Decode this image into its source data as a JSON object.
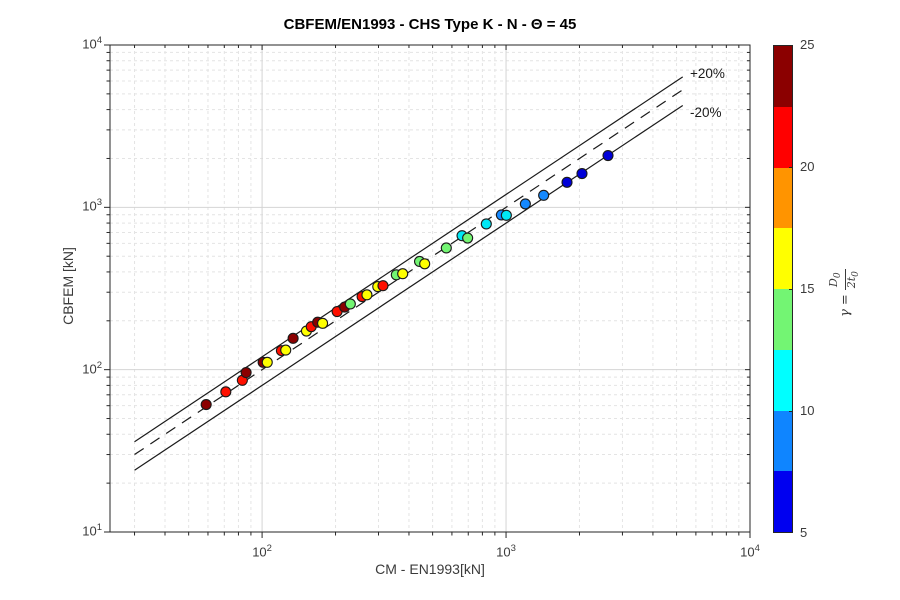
{
  "title": "CBFEM/EN1993 - CHS Type K - N - Θ = 45",
  "axes": {
    "xlabel": "CM - EN1993[kN]",
    "ylabel": "CBFEM [kN]",
    "xlim": [
      23.8,
      10000
    ],
    "ylim": [
      10,
      10000
    ],
    "x_major_ticks": [
      {
        "v": 100,
        "base": "10",
        "exp": "2"
      },
      {
        "v": 1000,
        "base": "10",
        "exp": "3"
      },
      {
        "v": 10000,
        "base": "10",
        "exp": "4"
      }
    ],
    "y_major_ticks": [
      {
        "v": 10,
        "base": "10",
        "exp": "1"
      },
      {
        "v": 100,
        "base": "10",
        "exp": "2"
      },
      {
        "v": 1000,
        "base": "10",
        "exp": "3"
      },
      {
        "v": 10000,
        "base": "10",
        "exp": "4"
      }
    ]
  },
  "reference_lines": [
    {
      "name": "plus20",
      "label": "+20%",
      "factor": 1.2,
      "style": "solid",
      "x_start": 30,
      "x_end": 5300
    },
    {
      "name": "identity",
      "label": "",
      "factor": 1.0,
      "style": "dashed",
      "x_start": 30,
      "x_end": 5300
    },
    {
      "name": "minus20",
      "label": "-20%",
      "factor": 0.8,
      "style": "solid",
      "x_start": 30,
      "x_end": 5300
    }
  ],
  "colorbar": {
    "tick_labels": [
      "5",
      "10",
      "15",
      "20",
      "25"
    ],
    "tick_values": [
      5,
      10,
      15,
      20,
      25
    ],
    "range": [
      5,
      25
    ],
    "segments_top_to_bottom": [
      "#8B0000",
      "#FF0000",
      "#FF9400",
      "#FFFF00",
      "#73F573",
      "#00FFFF",
      "#0F85FF",
      "#0000F0"
    ],
    "label": {
      "symbol": "γ",
      "equals": "=",
      "numerator_main": "D",
      "numerator_sub": "0",
      "denominator_main": "2t",
      "denominator_sub": "0"
    }
  },
  "chart_data": {
    "type": "scatter",
    "title": "CBFEM/EN1993 - CHS Type K - N - Θ = 45",
    "xlabel": "CM - EN1993[kN]",
    "ylabel": "CBFEM [kN]",
    "x_scale": "log",
    "y_scale": "log",
    "xlim": [
      23.8,
      10000
    ],
    "ylim": [
      10,
      10000
    ],
    "grid": true,
    "legend_position": "colorbar-right",
    "colorbar_label": "gamma = D0/(2t0)",
    "color_groups": {
      "darkred": {
        "gamma_bin": "22.5-25",
        "gamma": 25,
        "hex": "#8B0000"
      },
      "red": {
        "gamma_bin": "20-22.5",
        "gamma": 21,
        "hex": "#FF1000"
      },
      "yellow": {
        "gamma_bin": "15-17.5",
        "gamma": 16,
        "hex": "#FFFF00"
      },
      "green": {
        "gamma_bin": "12.5-15",
        "gamma": 13,
        "hex": "#73F573"
      },
      "cyan": {
        "gamma_bin": "10-12.5",
        "gamma": 11,
        "hex": "#00E8F5"
      },
      "blue": {
        "gamma_bin": "7.5-10",
        "gamma": 9,
        "hex": "#1589FF"
      },
      "darkblue": {
        "gamma_bin": "5-7.5",
        "gamma": 6,
        "hex": "#0000D8"
      }
    },
    "points": [
      {
        "x": 59,
        "y": 61,
        "g": "darkred"
      },
      {
        "x": 71,
        "y": 73,
        "g": "red"
      },
      {
        "x": 83,
        "y": 86,
        "g": "red"
      },
      {
        "x": 86,
        "y": 96,
        "g": "darkred"
      },
      {
        "x": 101,
        "y": 111,
        "g": "darkred"
      },
      {
        "x": 105,
        "y": 111,
        "g": "yellow"
      },
      {
        "x": 120,
        "y": 131,
        "g": "red"
      },
      {
        "x": 125,
        "y": 132,
        "g": "yellow"
      },
      {
        "x": 134,
        "y": 156,
        "g": "darkred"
      },
      {
        "x": 152,
        "y": 173,
        "g": "yellow"
      },
      {
        "x": 159,
        "y": 184,
        "g": "red"
      },
      {
        "x": 169,
        "y": 196,
        "g": "darkred"
      },
      {
        "x": 177,
        "y": 193,
        "g": "yellow"
      },
      {
        "x": 203,
        "y": 228,
        "g": "red"
      },
      {
        "x": 218,
        "y": 243,
        "g": "darkred"
      },
      {
        "x": 230,
        "y": 254,
        "g": "green"
      },
      {
        "x": 257,
        "y": 282,
        "g": "red"
      },
      {
        "x": 269,
        "y": 289,
        "g": "yellow"
      },
      {
        "x": 298,
        "y": 325,
        "g": "yellow"
      },
      {
        "x": 313,
        "y": 329,
        "g": "red"
      },
      {
        "x": 355,
        "y": 384,
        "g": "green"
      },
      {
        "x": 377,
        "y": 390,
        "g": "yellow"
      },
      {
        "x": 442,
        "y": 464,
        "g": "green"
      },
      {
        "x": 464,
        "y": 449,
        "g": "yellow"
      },
      {
        "x": 569,
        "y": 562,
        "g": "green"
      },
      {
        "x": 660,
        "y": 669,
        "g": "cyan"
      },
      {
        "x": 696,
        "y": 647,
        "g": "green"
      },
      {
        "x": 830,
        "y": 790,
        "g": "cyan"
      },
      {
        "x": 957,
        "y": 898,
        "g": "blue"
      },
      {
        "x": 1003,
        "y": 893,
        "g": "cyan"
      },
      {
        "x": 1200,
        "y": 1050,
        "g": "blue"
      },
      {
        "x": 1426,
        "y": 1186,
        "g": "blue"
      },
      {
        "x": 1778,
        "y": 1427,
        "g": "darkblue"
      },
      {
        "x": 2048,
        "y": 1614,
        "g": "darkblue"
      },
      {
        "x": 2618,
        "y": 2085,
        "g": "darkblue"
      }
    ]
  },
  "style_colors": {
    "grid_major": "#d4d4d4",
    "grid_minor": "#e4e4e4",
    "axis": "#262626",
    "reference_line": "#1a1a1a"
  }
}
